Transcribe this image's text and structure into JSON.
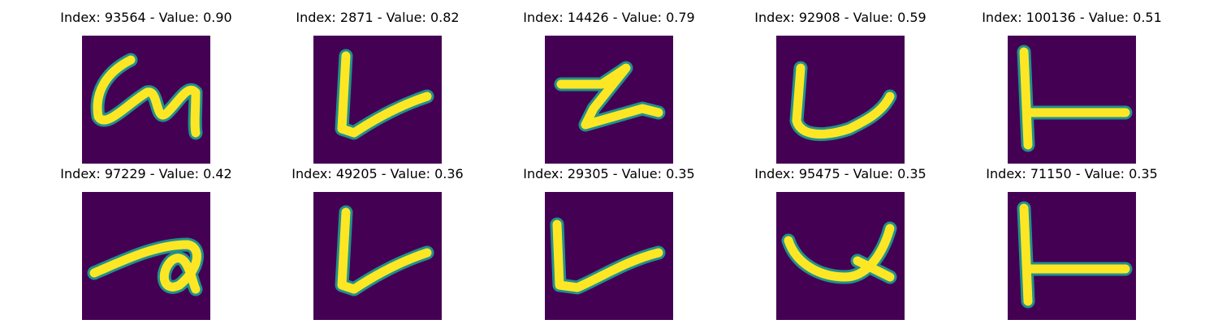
{
  "colors": {
    "background": "#440154",
    "stroke_edge": "#21918c",
    "stroke_core": "#fde725"
  },
  "panels": [
    {
      "title": "Index: 93564 - Value: 0.90",
      "glyph": "curly-g"
    },
    {
      "title": "Index: 2871 - Value: 0.82",
      "glyph": "v-shape"
    },
    {
      "title": "Index: 14426 - Value: 0.79",
      "glyph": "z-shape"
    },
    {
      "title": "Index: 92908 - Value: 0.59",
      "glyph": "u-shape"
    },
    {
      "title": "Index: 100136 - Value: 0.51",
      "glyph": "t-rotated"
    },
    {
      "title": "Index: 97229 - Value: 0.42",
      "glyph": "loop-a"
    },
    {
      "title": "Index: 49205 - Value: 0.36",
      "glyph": "v-shape"
    },
    {
      "title": "Index: 29305 - Value: 0.35",
      "glyph": "l-arrow"
    },
    {
      "title": "Index: 95475 - Value: 0.35",
      "glyph": "u-fish"
    },
    {
      "title": "Index: 71150 - Value: 0.35",
      "glyph": "t-rotated"
    }
  ]
}
